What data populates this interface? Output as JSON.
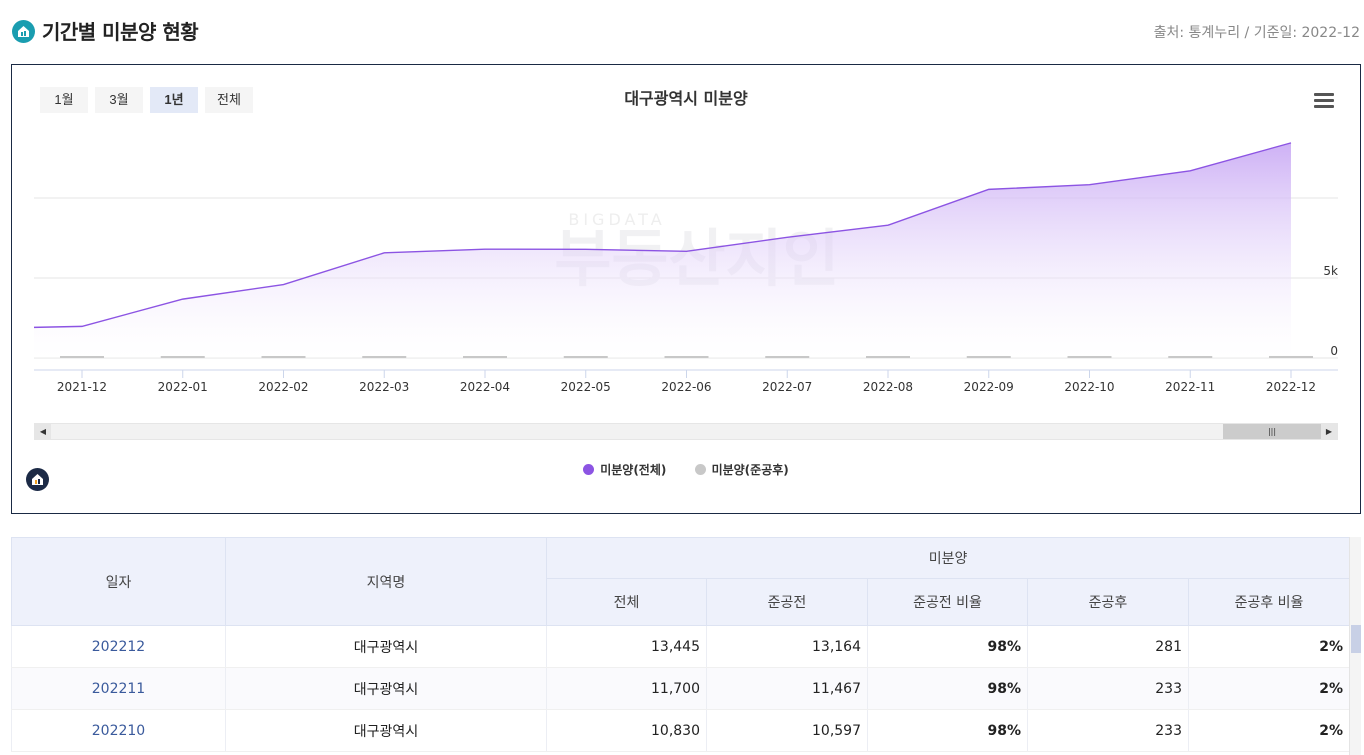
{
  "header": {
    "title": "기간별 미분양 현황",
    "source": "출처: 통계누리 / 기준일: 2022-12"
  },
  "range_buttons": [
    {
      "label": "1월",
      "active": false
    },
    {
      "label": "3월",
      "active": false
    },
    {
      "label": "1년",
      "active": true
    },
    {
      "label": "전체",
      "active": false
    }
  ],
  "watermark": {
    "small": "BIGDATA",
    "large": "부동산지인"
  },
  "chart_data": {
    "type": "area",
    "title": "대구광역시 미분양",
    "categories": [
      "2021-12",
      "2022-01",
      "2022-02",
      "2022-03",
      "2022-04",
      "2022-05",
      "2022-06",
      "2022-07",
      "2022-08",
      "2022-09",
      "2022-10",
      "2022-11",
      "2022-12"
    ],
    "series": [
      {
        "name": "미분양(전체)",
        "type": "area",
        "color": "#8c54e3",
        "values": [
          1977,
          3680,
          4591,
          6572,
          6800,
          6791,
          6670,
          7544,
          8301,
          10539,
          10830,
          11700,
          13445
        ]
      },
      {
        "name": "미분양(준공후)",
        "type": "bar",
        "color": "#c8c8c8",
        "values": [
          140,
          140,
          140,
          190,
          190,
          190,
          190,
          190,
          190,
          190,
          233,
          233,
          281
        ]
      }
    ],
    "y_tick_labels": [
      "0",
      "5k"
    ],
    "ylim": [
      0,
      15000
    ],
    "grid": true,
    "legend": "bottom-center"
  },
  "table": {
    "headers": {
      "date": "일자",
      "region": "지역명",
      "group": "미분양",
      "sub": [
        "전체",
        "준공전",
        "준공전 비율",
        "준공후",
        "준공후 비율"
      ]
    },
    "rows": [
      {
        "date": "202212",
        "region": "대구광역시",
        "total": "13,445",
        "pre": "13,164",
        "pre_ratio": "98%",
        "post": "281",
        "post_ratio": "2%"
      },
      {
        "date": "202211",
        "region": "대구광역시",
        "total": "11,700",
        "pre": "11,467",
        "pre_ratio": "98%",
        "post": "233",
        "post_ratio": "2%"
      },
      {
        "date": "202210",
        "region": "대구광역시",
        "total": "10,830",
        "pre": "10,597",
        "pre_ratio": "98%",
        "post": "233",
        "post_ratio": "2%"
      }
    ]
  }
}
